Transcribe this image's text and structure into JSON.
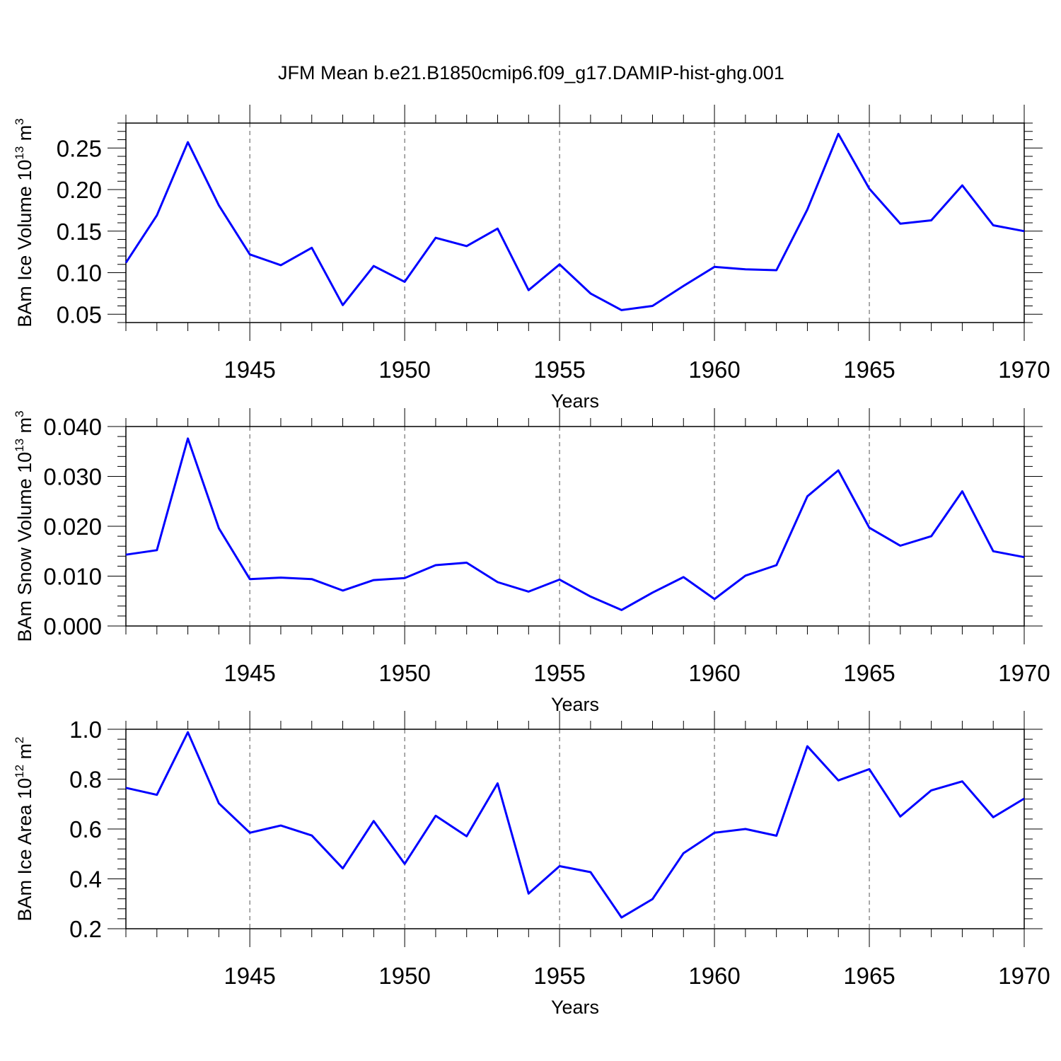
{
  "title": "JFM Mean b.e21.B1850cmip6.f09_g17.DAMIP-hist-ghg.001",
  "colors": {
    "line": "#0000ff",
    "axis": "#000000",
    "grid": "#555555",
    "background": "#ffffff"
  },
  "chart_data": [
    {
      "type": "line",
      "ylabel": "BAm Ice Volume 10",
      "ylabel_sup": "13",
      "ylabel_unit": "m",
      "ylabel_unit_sup": "3",
      "xlabel": "Years",
      "xlim": [
        1941,
        1970
      ],
      "ylim": [
        0.04,
        0.28
      ],
      "x_ticks": [
        1945,
        1950,
        1955,
        1960,
        1965,
        1970
      ],
      "y_ticks": [
        0.05,
        0.1,
        0.15,
        0.2,
        0.25
      ],
      "y_tick_labels": [
        "0.05",
        "0.10",
        "0.15",
        "0.20",
        "0.25"
      ],
      "y_minor_step": 0.01,
      "grid": "vertical dashed at major x ticks",
      "x": [
        1941,
        1942,
        1943,
        1944,
        1945,
        1946,
        1947,
        1948,
        1949,
        1950,
        1951,
        1952,
        1953,
        1954,
        1955,
        1956,
        1957,
        1958,
        1959,
        1960,
        1961,
        1962,
        1963,
        1964,
        1965,
        1966,
        1967,
        1968,
        1969,
        1970
      ],
      "values": [
        0.112,
        0.169,
        0.257,
        0.181,
        0.122,
        0.109,
        0.13,
        0.061,
        0.108,
        0.089,
        0.142,
        0.132,
        0.153,
        0.079,
        0.11,
        0.075,
        0.055,
        0.06,
        0.084,
        0.107,
        0.104,
        0.103,
        0.176,
        0.267,
        0.201,
        0.159,
        0.163,
        0.205,
        0.157,
        0.15
      ]
    },
    {
      "type": "line",
      "ylabel": "BAm Snow Volume 10",
      "ylabel_sup": "13",
      "ylabel_unit": "m",
      "ylabel_unit_sup": "3",
      "xlabel": "Years",
      "xlim": [
        1941,
        1970
      ],
      "ylim": [
        0.0,
        0.04
      ],
      "x_ticks": [
        1945,
        1950,
        1955,
        1960,
        1965,
        1970
      ],
      "y_ticks": [
        0.0,
        0.01,
        0.02,
        0.03,
        0.04
      ],
      "y_tick_labels": [
        "0.000",
        "0.010",
        "0.020",
        "0.030",
        "0.040"
      ],
      "y_minor_step": 0.002,
      "grid": "vertical dashed at major x ticks",
      "x": [
        1941,
        1942,
        1943,
        1944,
        1945,
        1946,
        1947,
        1948,
        1949,
        1950,
        1951,
        1952,
        1953,
        1954,
        1955,
        1956,
        1957,
        1958,
        1959,
        1960,
        1961,
        1962,
        1963,
        1964,
        1965,
        1966,
        1967,
        1968,
        1969,
        1970
      ],
      "values": [
        0.0143,
        0.0152,
        0.0376,
        0.0196,
        0.0094,
        0.0097,
        0.0094,
        0.0071,
        0.0092,
        0.0096,
        0.0122,
        0.0127,
        0.0088,
        0.0069,
        0.0093,
        0.0059,
        0.0032,
        0.0067,
        0.0098,
        0.0054,
        0.0101,
        0.0122,
        0.026,
        0.0312,
        0.0197,
        0.0161,
        0.018,
        0.027,
        0.015,
        0.0138
      ]
    },
    {
      "type": "line",
      "ylabel": "BAm Ice Area 10",
      "ylabel_sup": "12",
      "ylabel_unit": "m",
      "ylabel_unit_sup": "2",
      "xlabel": "Years",
      "xlim": [
        1941,
        1970
      ],
      "ylim": [
        0.2,
        1.0
      ],
      "x_ticks": [
        1945,
        1950,
        1955,
        1960,
        1965,
        1970
      ],
      "y_ticks": [
        0.2,
        0.4,
        0.6,
        0.8,
        1.0
      ],
      "y_tick_labels": [
        "0.2",
        "0.4",
        "0.6",
        "0.8",
        "1.0"
      ],
      "y_minor_step": 0.04,
      "grid": "vertical dashed at major x ticks",
      "x": [
        1941,
        1942,
        1943,
        1944,
        1945,
        1946,
        1947,
        1948,
        1949,
        1950,
        1951,
        1952,
        1953,
        1954,
        1955,
        1956,
        1957,
        1958,
        1959,
        1960,
        1961,
        1962,
        1963,
        1964,
        1965,
        1966,
        1967,
        1968,
        1969,
        1970
      ],
      "values": [
        0.765,
        0.737,
        0.988,
        0.703,
        0.585,
        0.614,
        0.574,
        0.442,
        0.632,
        0.46,
        0.653,
        0.571,
        0.783,
        0.341,
        0.451,
        0.427,
        0.245,
        0.319,
        0.503,
        0.585,
        0.6,
        0.573,
        0.932,
        0.795,
        0.84,
        0.65,
        0.755,
        0.791,
        0.647,
        0.722
      ]
    }
  ]
}
